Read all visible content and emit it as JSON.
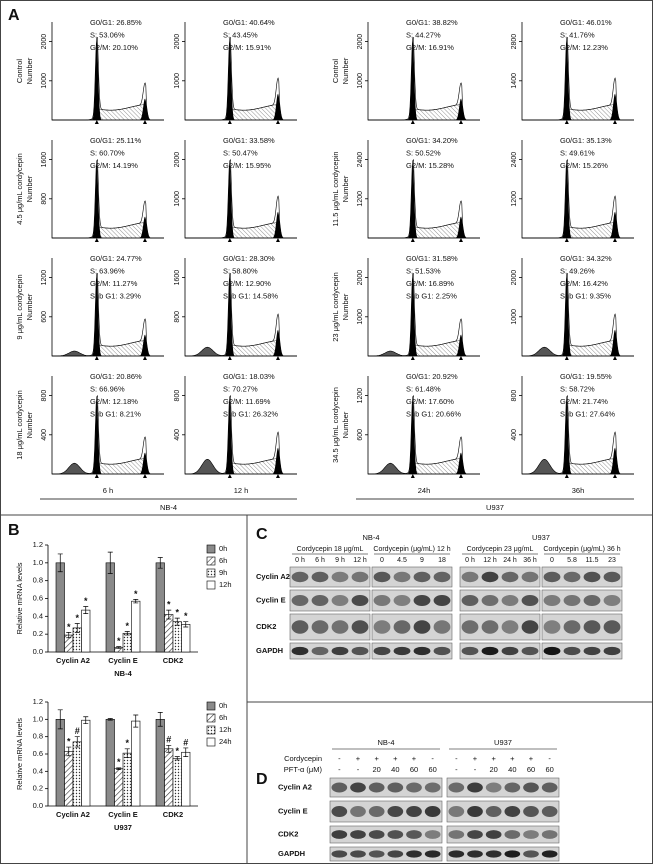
{
  "panel_a": {
    "label": "A",
    "y_title": "Number",
    "columns": [
      "6 h",
      "12 h",
      "24h",
      "36h"
    ],
    "groups": [
      "NB-4",
      "U937"
    ],
    "rows": [
      {
        "labels": [
          "Control",
          "Control"
        ],
        "cells": [
          {
            "yticks": [
              1000,
              2000
            ],
            "stats": [
              "G0/G1: 26.85%",
              "S: 53.06%",
              "G2/M: 20.10%"
            ]
          },
          {
            "yticks": [
              1000,
              2000
            ],
            "stats": [
              "G0/G1: 40.64%",
              "S: 43.45%",
              "G2/M: 15.91%"
            ]
          },
          {
            "yticks": [
              1000,
              2000
            ],
            "stats": [
              "G0/G1: 38.82%",
              "S: 44.27%",
              "G2/M: 16.91%"
            ]
          },
          {
            "yticks": [
              1400,
              2800
            ],
            "stats": [
              "G0/G1: 46.01%",
              "S: 41.76%",
              "G2/M: 12.23%"
            ]
          }
        ]
      },
      {
        "labels": [
          "4.5 μg/mL cordycepin",
          "11.5 μg/mL cordycepin"
        ],
        "cells": [
          {
            "yticks": [
              800,
              1600
            ],
            "stats": [
              "G0/G1: 25.11%",
              "S: 60.70%",
              "G2/M: 14.19%"
            ]
          },
          {
            "yticks": [
              1000,
              2000
            ],
            "stats": [
              "G0/G1: 33.58%",
              "S: 50.47%",
              "G2/M: 15.95%"
            ]
          },
          {
            "yticks": [
              1200,
              2400
            ],
            "stats": [
              "G0/G1: 34.20%",
              "S: 50.52%",
              "G2/M: 15.28%"
            ]
          },
          {
            "yticks": [
              1200,
              2400
            ],
            "stats": [
              "G0/G1: 35.13%",
              "S: 49.61%",
              "G2/M: 15.26%"
            ]
          }
        ]
      },
      {
        "labels": [
          "9 μg/mL cordycepin",
          "23 μg/mL cordycepin"
        ],
        "cells": [
          {
            "yticks": [
              600,
              1200
            ],
            "stats": [
              "G0/G1: 24.77%",
              "S: 63.96%",
              "G2/M: 11.27%",
              "Sub G1: 3.29%"
            ]
          },
          {
            "yticks": [
              800,
              1600
            ],
            "stats": [
              "G0/G1: 28.30%",
              "S: 58.80%",
              "G2/M: 12.90%",
              "Sub G1: 14.58%"
            ]
          },
          {
            "yticks": [
              1000,
              2000
            ],
            "stats": [
              "G0/G1: 31.58%",
              "S: 51.53%",
              "G2/M: 16.89%",
              "Sub G1: 2.25%"
            ]
          },
          {
            "yticks": [
              1000,
              2000
            ],
            "stats": [
              "G0/G1: 34.32%",
              "S: 49.26%",
              "G2/M: 16.42%",
              "Sub G1: 9.35%"
            ]
          }
        ]
      },
      {
        "labels": [
          "18 μg/mL cordycepin",
          "34.5 μg/mL cordycepin"
        ],
        "cells": [
          {
            "yticks": [
              400,
              800
            ],
            "stats": [
              "G0/G1: 20.86%",
              "S: 66.96%",
              "G2/M: 12.18%",
              "Sub G1: 8.21%"
            ]
          },
          {
            "yticks": [
              400,
              800
            ],
            "stats": [
              "G0/G1: 18.03%",
              "S: 70.27%",
              "G2/M: 11.69%",
              "Sub G1: 26.32%"
            ]
          },
          {
            "yticks": [
              600,
              1200
            ],
            "stats": [
              "G0/G1: 20.92%",
              "S: 61.48%",
              "G2/M: 17.60%",
              "Sub G1: 20.66%"
            ]
          },
          {
            "yticks": [
              400,
              800
            ],
            "stats": [
              "G0/G1: 19.55%",
              "S: 58.72%",
              "G2/M: 21.74%",
              "Sub G1: 27.64%"
            ]
          }
        ]
      }
    ]
  },
  "panel_b": {
    "label": "B",
    "charts": [
      {
        "type": "bar",
        "y_title": "Relative mRNA levels",
        "x_title": "NB-4",
        "categories": [
          "Cyclin A2",
          "Cyclin E",
          "CDK2"
        ],
        "ylim": [
          0,
          1.2
        ],
        "yticks": [
          {
            "value": 0,
            "label": "0.0"
          },
          {
            "value": 0.2,
            "label": "0.2"
          },
          {
            "value": 0.4,
            "label": "0.4"
          },
          {
            "value": 0.6,
            "label": "0.6"
          },
          {
            "value": 0.8,
            "label": "0.8"
          },
          {
            "value": 1,
            "label": "1.0"
          },
          {
            "value": 1.2,
            "label": "1.2"
          }
        ],
        "series": [
          {
            "name": "0h",
            "values": [
              1.0,
              1.0,
              1.0
            ],
            "errors": [
              0.1,
              0.12,
              0.06
            ],
            "markers": [
              null,
              null,
              null
            ]
          },
          {
            "name": "6h",
            "values": [
              0.19,
              0.05,
              0.42
            ],
            "errors": [
              0.03,
              0.01,
              0.05
            ],
            "markers": [
              "*",
              "*",
              "*"
            ]
          },
          {
            "name": "9h",
            "values": [
              0.27,
              0.21,
              0.34
            ],
            "errors": [
              0.05,
              0.02,
              0.04
            ],
            "markers": [
              "*",
              "*",
              "*"
            ]
          },
          {
            "name": "12h",
            "values": [
              0.47,
              0.57,
              0.31
            ],
            "errors": [
              0.04,
              0.02,
              0.03
            ],
            "markers": [
              "*",
              "*",
              "*"
            ]
          }
        ]
      },
      {
        "type": "bar",
        "y_title": "Relative mRNA levels",
        "x_title": "U937",
        "categories": [
          "Cyclin A2",
          "Cyclin E",
          "CDK2"
        ],
        "ylim": [
          0,
          1.2
        ],
        "yticks": [
          {
            "value": 0,
            "label": "0.0"
          },
          {
            "value": 0.2,
            "label": "0.2"
          },
          {
            "value": 0.4,
            "label": "0.4"
          },
          {
            "value": 0.6,
            "label": "0.6"
          },
          {
            "value": 0.8,
            "label": "0.8"
          },
          {
            "value": 1,
            "label": "1.0"
          },
          {
            "value": 1.2,
            "label": "1.2"
          }
        ],
        "series": [
          {
            "name": "0h",
            "values": [
              1.0,
              1.0,
              1.0
            ],
            "errors": [
              0.11,
              0.01,
              0.08
            ],
            "markers": [
              null,
              null,
              null
            ]
          },
          {
            "name": "6h",
            "values": [
              0.63,
              0.43,
              0.66
            ],
            "errors": [
              0.05,
              0.01,
              0.04
            ],
            "markers": [
              "*",
              "*",
              "#"
            ]
          },
          {
            "name": "12h",
            "values": [
              0.74,
              0.61,
              0.55
            ],
            "errors": [
              0.06,
              0.05,
              0.02
            ],
            "markers": [
              "#",
              "*",
              "*"
            ]
          },
          {
            "name": "24h",
            "values": [
              0.99,
              0.98,
              0.62
            ],
            "errors": [
              0.04,
              0.07,
              0.05
            ],
            "markers": [
              null,
              null,
              "#"
            ]
          }
        ]
      }
    ]
  },
  "panel_c": {
    "label": "C",
    "rows": [
      "Cyclin A2",
      "Cyclin E",
      "CDK2",
      "GAPDH"
    ],
    "groups": [
      {
        "name": "NB-4",
        "blocks": [
          {
            "title": "Cordycepin 18 μg/mL",
            "lanes": [
              "0 h",
              "6 h",
              "9 h",
              "12 h"
            ]
          },
          {
            "title": "Cordycepin (μg/mL) 12 h",
            "lanes": [
              "0",
              "4.5",
              "9",
              "18"
            ]
          }
        ]
      },
      {
        "name": "U937",
        "blocks": [
          {
            "title": "Cordycepin 23 μg/mL",
            "lanes": [
              "0 h",
              "12 h",
              "24 h",
              "36 h"
            ]
          },
          {
            "title": "Cordycepin (μg/mL) 36 h",
            "lanes": [
              "0",
              "5.8",
              "11.5",
              "23"
            ]
          }
        ]
      }
    ]
  },
  "panel_d": {
    "label": "D",
    "rows": [
      "Cyclin A2",
      "Cyclin E",
      "CDK2",
      "GAPDH"
    ],
    "conditions": [
      "Cordycepin",
      "PFT-α (μM)"
    ],
    "groups": [
      {
        "name": "NB-4",
        "lanes": [
          [
            "-",
            "-"
          ],
          [
            "+",
            "-"
          ],
          [
            "+",
            "20"
          ],
          [
            "+",
            "40"
          ],
          [
            "+",
            "60"
          ],
          [
            "-",
            "60"
          ]
        ]
      },
      {
        "name": "U937",
        "lanes": [
          [
            "-",
            "-"
          ],
          [
            "+",
            "-"
          ],
          [
            "+",
            "20"
          ],
          [
            "+",
            "40"
          ],
          [
            "+",
            "60"
          ],
          [
            "-",
            "60"
          ]
        ]
      }
    ]
  }
}
